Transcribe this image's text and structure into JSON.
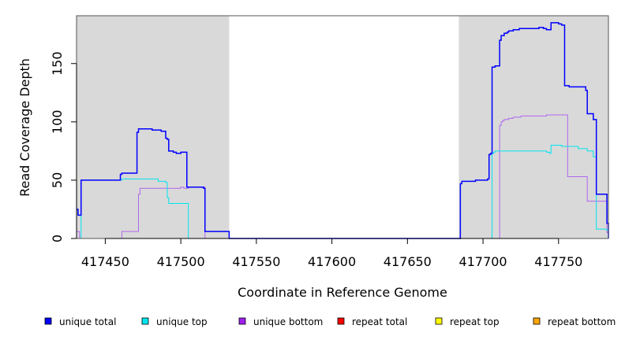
{
  "chart_data": {
    "type": "line",
    "title": "",
    "xlabel": "Coordinate in Reference Genome",
    "ylabel": "Read Coverage Depth",
    "xlim": [
      417431,
      417783
    ],
    "ylim": [
      0,
      191
    ],
    "x_ticks": [
      417450,
      417500,
      417550,
      417600,
      417650,
      417700,
      417750
    ],
    "x_tick_labels": [
      "417450",
      "417500",
      "417550",
      "417600",
      "417650",
      "417700",
      "417750"
    ],
    "y_ticks": [
      0,
      50,
      100,
      150
    ],
    "y_tick_labels": [
      "0",
      "50",
      "100",
      "150"
    ],
    "shaded_regions": [
      {
        "x0": 417431,
        "x1": 417532,
        "color": "#d9d9d9"
      },
      {
        "x0": 417684,
        "x1": 417783,
        "color": "#d9d9d9"
      }
    ],
    "series": [
      {
        "name": "unique total",
        "color": "#0000ff",
        "x": [
          417431,
          417432,
          417433,
          417434,
          417460,
          417461,
          417462,
          417471,
          417472,
          417473,
          417481,
          417487,
          417490,
          417491,
          417492,
          417495,
          417496,
          417497,
          417500,
          417501,
          417504,
          417515,
          417516,
          417532,
          417684,
          417685,
          417686,
          417687,
          417695,
          417703,
          417704,
          417705,
          417706,
          417708,
          417709,
          417710,
          417711,
          417712,
          417714,
          417716,
          417717,
          417718,
          417720,
          417722,
          417724,
          417725,
          417737,
          417740,
          417741,
          417742,
          417744,
          417745,
          417750,
          417752,
          417754,
          417756,
          417757,
          417759,
          417761,
          417763,
          417765,
          417766,
          417768,
          417769,
          417770,
          417771,
          417772,
          417773,
          417775,
          417776,
          417782,
          417783
        ],
        "y": [
          25,
          20,
          20,
          50,
          55,
          56,
          56,
          91,
          94,
          94,
          93,
          92,
          86,
          85,
          75,
          74,
          74,
          73,
          74,
          74,
          44,
          43,
          6,
          0,
          0,
          47,
          49,
          49,
          50,
          51,
          72,
          73,
          147,
          148,
          148,
          148,
          170,
          174,
          176,
          177,
          178,
          178,
          179,
          179,
          180,
          180,
          181,
          180,
          180,
          179,
          179,
          185,
          184,
          183,
          131,
          131,
          130,
          130,
          130,
          130,
          130,
          130,
          127,
          107,
          107,
          107,
          107,
          102,
          38,
          38,
          13,
          0
        ]
      },
      {
        "name": "unique top",
        "color": "#00e5ee",
        "x": [
          417431,
          417432,
          417434,
          417460,
          417461,
          417480,
          417485,
          417490,
          417491,
          417492,
          417493,
          417497,
          417504,
          417505,
          417532,
          417684,
          417700,
          417705,
          417706,
          417707,
          417708,
          417710,
          417740,
          417742,
          417744,
          417745,
          417750,
          417752,
          417763,
          417768,
          417769,
          417770,
          417771,
          417772,
          417773,
          417775,
          417776,
          417782,
          417783
        ],
        "y": [
          0,
          0,
          50,
          50,
          51,
          51,
          49,
          48,
          35,
          30,
          30,
          30,
          30,
          0,
          0,
          0,
          0,
          0,
          73,
          74,
          75,
          75,
          75,
          74,
          73,
          80,
          80,
          79,
          77,
          77,
          75,
          75,
          75,
          75,
          70,
          8,
          8,
          7,
          0
        ]
      },
      {
        "name": "unique bottom",
        "color": "#b066ee",
        "x": [
          417431,
          417432,
          417433,
          417460,
          417461,
          417471,
          417472,
          417473,
          417500,
          417501,
          417502,
          417505,
          417515,
          417516,
          417532,
          417684,
          417705,
          417710,
          417711,
          417712,
          417713,
          417714,
          417716,
          417717,
          417720,
          417725,
          417730,
          417735,
          417740,
          417742,
          417744,
          417745,
          417750,
          417755,
          417756,
          417761,
          417765,
          417766,
          417768,
          417769,
          417775,
          417776,
          417782,
          417783
        ],
        "y": [
          6,
          6,
          0,
          0,
          6,
          6,
          38,
          43,
          44,
          44,
          43,
          44,
          44,
          0,
          0,
          0,
          0,
          0,
          97,
          100,
          101,
          102,
          102,
          103,
          104,
          105,
          105,
          105,
          105,
          106,
          106,
          106,
          106,
          106,
          53,
          53,
          53,
          53,
          53,
          32,
          32,
          32,
          5,
          0
        ]
      },
      {
        "name": "repeat total",
        "color": "#ff0000",
        "x": [
          417431,
          417783
        ],
        "y": [
          0,
          0
        ]
      },
      {
        "name": "repeat top",
        "color": "#ffff00",
        "x": [
          417431,
          417783
        ],
        "y": [
          0,
          0
        ]
      },
      {
        "name": "repeat bottom",
        "color": "#ff9900",
        "x": [
          417431,
          417783
        ],
        "y": [
          0,
          0
        ]
      }
    ],
    "legend": {
      "placement": "bottom",
      "entries": [
        {
          "label": "unique total",
          "color": "#0000ff"
        },
        {
          "label": "unique top",
          "color": "#00e5ee"
        },
        {
          "label": "unique bottom",
          "color": "#a020f0"
        },
        {
          "label": "repeat total",
          "color": "#ff0000"
        },
        {
          "label": "repeat top",
          "color": "#ffff00"
        },
        {
          "label": "repeat bottom",
          "color": "#ffa500"
        }
      ]
    }
  }
}
